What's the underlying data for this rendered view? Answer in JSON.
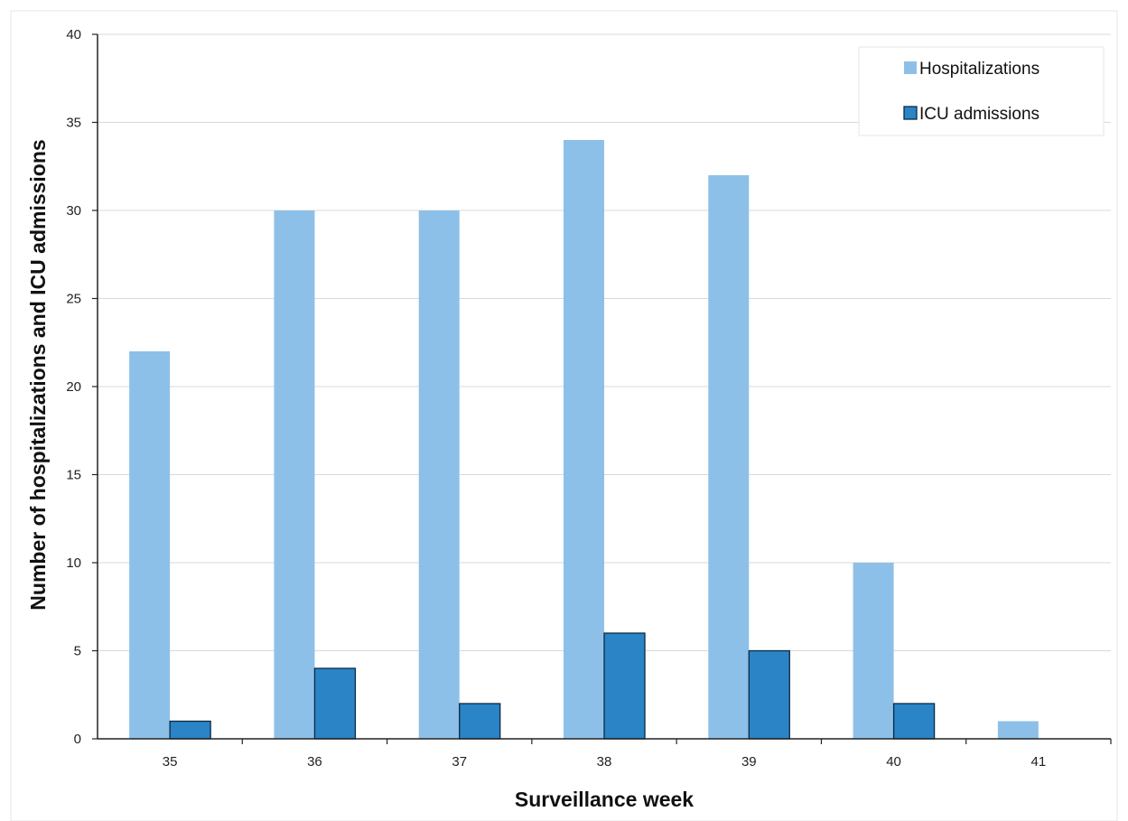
{
  "chart_data": {
    "type": "bar",
    "title": "",
    "xlabel": "Surveillance week",
    "ylabel": "Number of  hospitalizations and ICU admissions",
    "categories": [
      "35",
      "36",
      "37",
      "38",
      "39",
      "40",
      "41"
    ],
    "series": [
      {
        "name": "Hospitalizations",
        "values": [
          22,
          30,
          30,
          34,
          32,
          10,
          1
        ],
        "color": "#8dc0e8"
      },
      {
        "name": "ICU admissions",
        "values": [
          1,
          4,
          2,
          6,
          5,
          2,
          0
        ],
        "color": "#2a84c6",
        "stroke": "#0b2a44"
      }
    ],
    "ylim": [
      0,
      40
    ],
    "yticks": [
      0,
      5,
      10,
      15,
      20,
      25,
      30,
      35,
      40
    ],
    "grid": true,
    "gridColor": "#d9d9d9",
    "legend": "top-right"
  }
}
